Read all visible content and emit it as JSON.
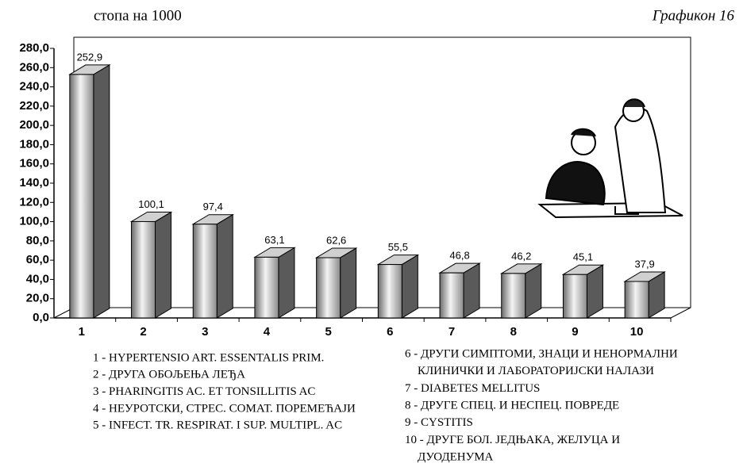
{
  "chart_data": {
    "type": "bar3d",
    "title": "стопа на 1000",
    "subtitle": "Графикон 16",
    "categories": [
      "1",
      "2",
      "3",
      "4",
      "5",
      "6",
      "7",
      "8",
      "9",
      "10"
    ],
    "values": [
      252.9,
      100.1,
      97.4,
      63.1,
      62.6,
      55.5,
      46.8,
      46.2,
      45.1,
      37.9
    ],
    "value_labels": [
      "252,9",
      "100,1",
      "97,4",
      "63,1",
      "62,6",
      "55,5",
      "46,8",
      "46,2",
      "45,1",
      "37,9"
    ],
    "ylim": [
      0,
      280
    ],
    "yticks": [
      {
        "value": 0,
        "label": "0,0"
      },
      {
        "value": 20,
        "label": "20,0"
      },
      {
        "value": 40,
        "label": "40,0"
      },
      {
        "value": 60,
        "label": "60,0"
      },
      {
        "value": 80,
        "label": "80,0"
      },
      {
        "value": 100,
        "label": "100,0"
      },
      {
        "value": 120,
        "label": "120,0"
      },
      {
        "value": 140,
        "label": "140,0"
      },
      {
        "value": 160,
        "label": "160,0"
      },
      {
        "value": 180,
        "label": "180,0"
      },
      {
        "value": 200,
        "label": "200,0"
      },
      {
        "value": 220,
        "label": "220,0"
      },
      {
        "value": 240,
        "label": "240,0"
      },
      {
        "value": 260,
        "label": "260,0"
      },
      {
        "value": 280,
        "label": "280,0"
      }
    ],
    "grid": false,
    "legend_notes": [
      [
        "1 - HYPERTENSIO ART. ESSENTALIS PRIM."
      ],
      [
        "2 - ДРУГА ОБОЉЕЊА ЛЕЂА"
      ],
      [
        "3 - PHARINGITIS AC. ET TONSILLITIS AC"
      ],
      [
        "4 - НЕУРОТСКИ, СТРЕС. СОМАТ. ПОРЕМЕЋАЈИ"
      ],
      [
        "5 - INFECT. TR. RESPIRAT. I SUP. MULTIPL. AC"
      ],
      [
        "6 - ДРУГИ СИМПТОМИ, ЗНАЦИ И НЕНОРМАЛНИ",
        "КЛИНИЧКИ И ЛАБОРАТОРИЈСКИ НАЛАЗИ"
      ],
      [
        "7 - DIABETES MELLITUS"
      ],
      [
        "8 - ДРУГЕ СПЕЦ. И НЕСПЕЦ. ПОВРЕДЕ"
      ],
      [
        "9 - CYSTITIS"
      ],
      [
        "10 - ДРУГЕ БОЛ. ЈЕДЊАКА, ЖЕЛУЦА И",
        "ДУОДЕНУМА"
      ]
    ]
  }
}
